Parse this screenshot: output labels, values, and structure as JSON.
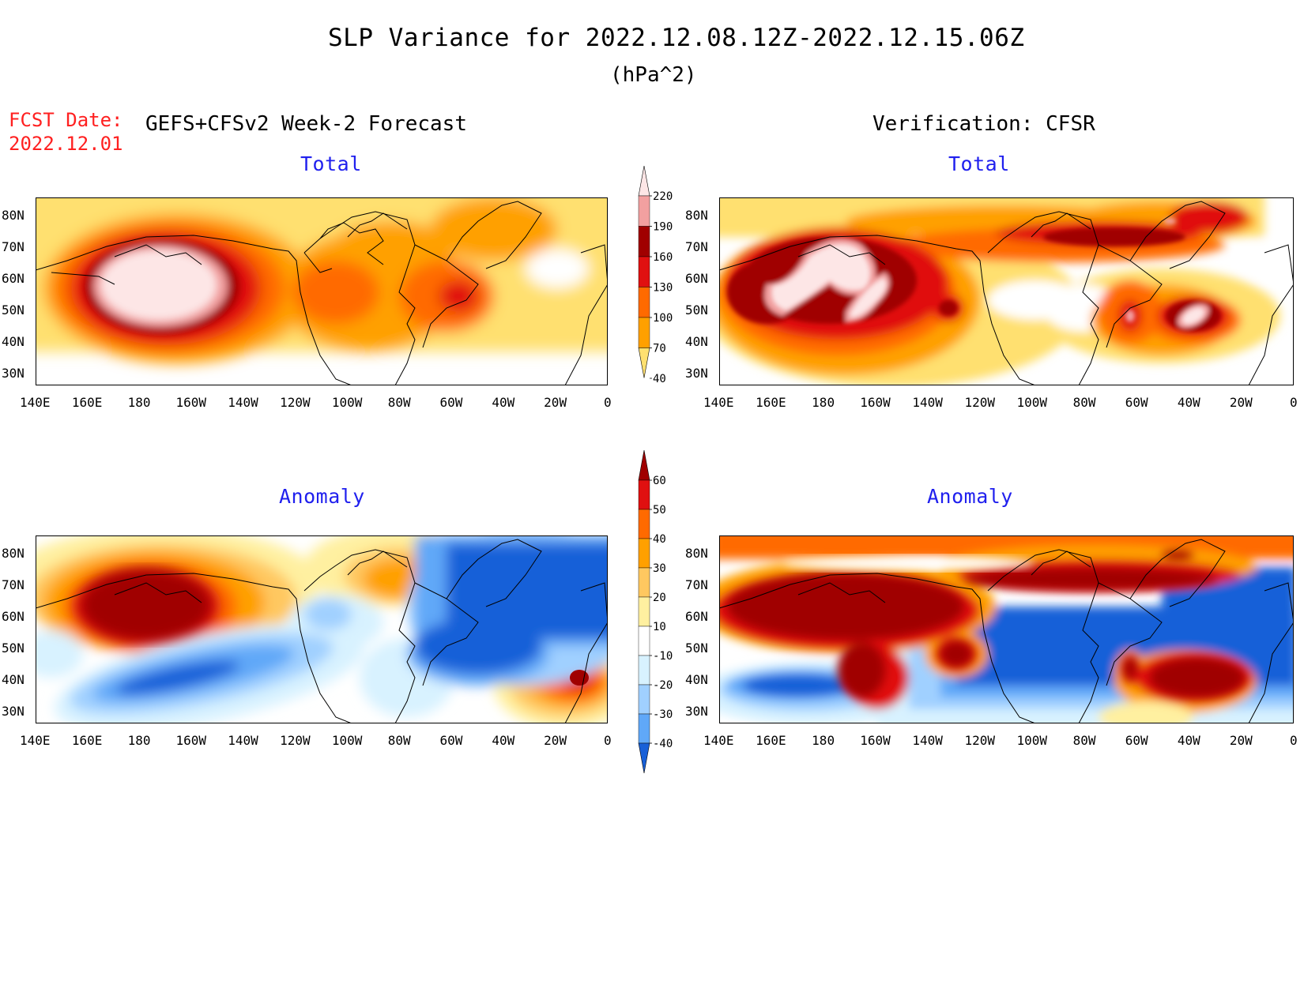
{
  "header": {
    "title": "SLP Variance for 2022.12.08.12Z-2022.12.15.06Z",
    "units": "(hPa^2)",
    "fcst_label": "FCST Date:",
    "fcst_date": "2022.12.01",
    "left_heading": "GEFS+CFSv2 Week-2 Forecast",
    "right_heading": "Verification: CFSR"
  },
  "panels": {
    "tl": {
      "title": "Total"
    },
    "tr": {
      "title": "Total"
    },
    "bl": {
      "title": "Anomaly"
    },
    "br": {
      "title": "Anomaly"
    }
  },
  "axes": {
    "lat_labels": [
      "80N",
      "70N",
      "60N",
      "50N",
      "40N",
      "30N"
    ],
    "lon_labels": [
      "140E",
      "160E",
      "180",
      "160W",
      "140W",
      "120W",
      "100W",
      "80W",
      "60W",
      "40W",
      "20W",
      "0"
    ]
  },
  "colorbars": {
    "total": {
      "labels": [
        "220",
        "190",
        "160",
        "130",
        "100",
        "70",
        "40"
      ],
      "colors": [
        "#fde6e6",
        "#f2a0a0",
        "#a00000",
        "#e01010",
        "#ff6a00",
        "#ffa000",
        "#ffe070"
      ]
    },
    "anomaly": {
      "labels": [
        "60",
        "50",
        "40",
        "30",
        "20",
        "10",
        "-10",
        "-20",
        "-30",
        "-40"
      ],
      "colors": [
        "#a00000",
        "#e01010",
        "#ff6a00",
        "#ffa000",
        "#ffc860",
        "#fff0a0",
        "#ffffff",
        "#d8f2ff",
        "#a0d0ff",
        "#60a8f8",
        "#1860d8"
      ]
    }
  },
  "chart_data": {
    "type": "heatmap",
    "variable": "SLP Variance",
    "units": "hPa^2",
    "period": "2022.12.08.12Z-2022.12.15.06Z",
    "lat_range": [
      "30N",
      "80N"
    ],
    "lon_range": [
      "140E",
      "0"
    ],
    "total_levels": [
      40,
      70,
      100,
      130,
      160,
      190,
      220
    ],
    "anomaly_levels": [
      -40,
      -30,
      -20,
      -10,
      10,
      20,
      30,
      40,
      50,
      60
    ]
  }
}
